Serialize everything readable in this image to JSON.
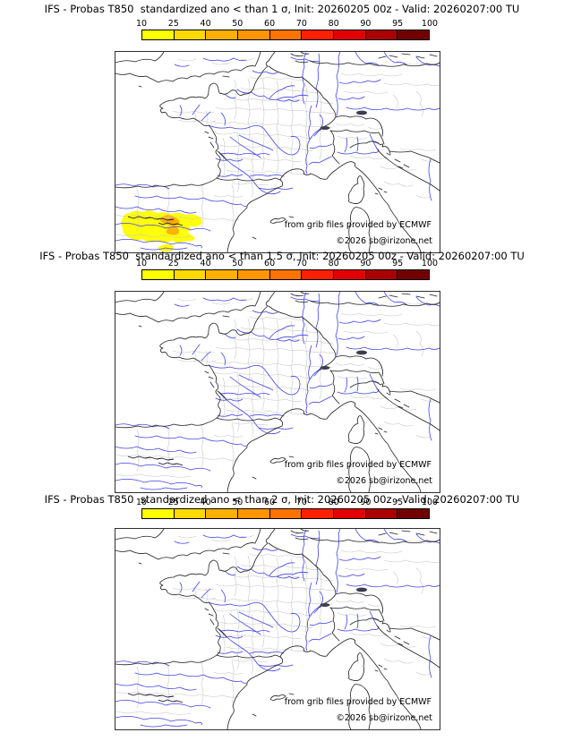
{
  "panels": [
    {
      "title": "IFS - Probas T850  standardized ano < than 1 σ, Init: 20260205 00z - Valid: 20260207:00 TU",
      "credit": "from grib files provided by ECMWF",
      "copyright": "©2026 sb@irizone.net",
      "has_anomaly_blob": true
    },
    {
      "title": "IFS - Probas T850  standardized ano < than 1.5 σ, Init: 20260205 00z - Valid: 20260207:00 TU",
      "credit": "from grib files provided by ECMWF",
      "copyright": "©2026 sb@irizone.net",
      "has_anomaly_blob": false
    },
    {
      "title": "IFS - Probas T850  standardized ano < than 2 σ, Init: 20260205 00z - Valid: 20260207:00 TU",
      "credit": "from grib files provided by ECMWF",
      "copyright": "©2026 sb@irizone.net",
      "has_anomaly_blob": false
    }
  ],
  "colorbar": {
    "ticks": [
      "10",
      "25",
      "40",
      "50",
      "60",
      "70",
      "80",
      "90",
      "95",
      "100"
    ],
    "segment_colors": [
      "#FFFF00",
      "#FFD900",
      "#FFB000",
      "#FF9500",
      "#FF7400",
      "#FF2000",
      "#E30000",
      "#AB0000",
      "#720000"
    ],
    "border_color": "#000000"
  },
  "map_colors": {
    "coast": "#1f1f1f",
    "river": "#4343e6",
    "admin_boundary": "#c4c4c4",
    "anomaly_yellow": "#FFFF0A",
    "anomaly_orange": "#FFB400",
    "anomaly_deep_orange": "#FF9E00",
    "lake": "#3d3d50"
  }
}
